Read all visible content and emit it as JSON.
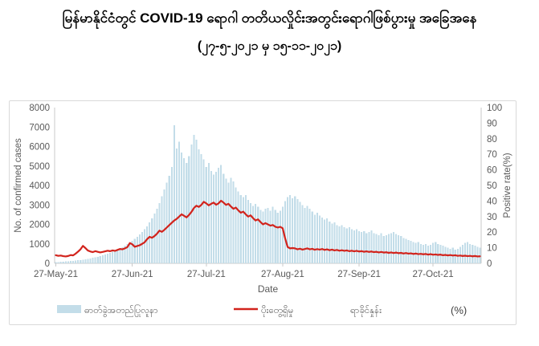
{
  "title": {
    "line1": "မြန်မာနိုင်ငံတွင်  COVID-19  ရောဂါ တတိယလှိုင်းအတွင်းရောဂါဖြစ်ပွားမှု  အခြေအနေ",
    "line2": "(၂၇-၅-၂၀၂၁ မှ ၁၅-၁၁-၂၀၂၁)"
  },
  "colors": {
    "bar_fill": "#c3dde9",
    "line_stroke": "#d2231c",
    "axis_text": "#595959",
    "axis_line": "#c9c9c9",
    "chart_border": "#d9d9d9"
  },
  "chart_data": {
    "type": "bar",
    "subtype": "combo-bar-line",
    "title": "Myanmar COVID-19 third wave: daily confirmed cases and positive rate",
    "xlabel": "Date",
    "x": {
      "start_date": "27-May-21",
      "end_date": "15-Nov-21",
      "tick_labels": [
        "27-May-21",
        "27-Jun-21",
        "27-Jul-21",
        "27-Aug-21",
        "27-Sep-21",
        "27-Oct-21"
      ],
      "tick_day_indices": [
        0,
        31,
        61,
        92,
        123,
        153
      ],
      "total_days": 173
    },
    "left_axis": {
      "title": "No. of confirmed cases",
      "min": 0,
      "max": 8000,
      "ticks": [
        0,
        1000,
        2000,
        3000,
        4000,
        5000,
        6000,
        7000,
        8000
      ],
      "grid": false
    },
    "right_axis": {
      "title": "Positive rate(%)",
      "min": 0,
      "max": 100,
      "ticks": [
        0,
        10,
        20,
        30,
        40,
        50,
        60,
        70,
        80,
        90,
        100
      ],
      "grid": false
    },
    "series": [
      {
        "name": "ဓာတ်ခွဲအတည်ပြုလူနာ",
        "type": "bar",
        "axis": "left",
        "color": "#c3dde9",
        "values": [
          61,
          72,
          84,
          90,
          97,
          110,
          118,
          125,
          140,
          155,
          170,
          185,
          205,
          230,
          255,
          280,
          310,
          340,
          375,
          410,
          450,
          495,
          545,
          600,
          640,
          700,
          760,
          830,
          900,
          980,
          1060,
          1150,
          1250,
          1370,
          1480,
          1600,
          1750,
          1900,
          2100,
          2300,
          2550,
          2800,
          3100,
          3450,
          3800,
          4150,
          4500,
          4950,
          7083,
          5900,
          6250,
          5700,
          5400,
          5150,
          5500,
          6100,
          6600,
          6350,
          5850,
          5600,
          5350,
          4950,
          5150,
          4750,
          4550,
          4700,
          4900,
          5050,
          4600,
          4350,
          4150,
          4400,
          4200,
          3900,
          3700,
          3500,
          3400,
          3500,
          3250,
          3100,
          2950,
          3050,
          2900,
          2750,
          2650,
          2800,
          2850,
          2700,
          2900,
          2750,
          2600,
          2700,
          2900,
          3200,
          3400,
          3500,
          3350,
          3450,
          3300,
          3150,
          3000,
          2850,
          2950,
          2800,
          2650,
          2500,
          2600,
          2450,
          2350,
          2250,
          2300,
          2150,
          2050,
          2100,
          1950,
          1900,
          1950,
          1850,
          1800,
          1850,
          1750,
          1700,
          1750,
          1650,
          1600,
          1650,
          1550,
          1600,
          1700,
          1550,
          1500,
          1450,
          1550,
          1400,
          1450,
          1500,
          1550,
          1600,
          1500,
          1450,
          1400,
          1300,
          1250,
          1200,
          1150,
          1100,
          1050,
          1100,
          1000,
          950,
          1000,
          900,
          950,
          1050,
          1100,
          1000,
          950,
          900,
          850,
          800,
          750,
          800,
          700,
          750,
          850,
          950,
          1050,
          1100,
          1000,
          950,
          900,
          850,
          800
        ]
      },
      {
        "name": "ပိုးတွေ့ရှိမှု ရာခိုင်နှုန်း (%)",
        "type": "line",
        "axis": "right",
        "color": "#d2231c",
        "values": [
          5.2,
          4.8,
          5.0,
          4.6,
          4.4,
          4.7,
          5.3,
          5.1,
          6.2,
          7.5,
          9.0,
          11.2,
          9.8,
          8.2,
          7.6,
          7.2,
          7.8,
          7.4,
          7.0,
          7.3,
          7.7,
          8.1,
          7.8,
          8.3,
          8.0,
          8.6,
          9.2,
          9.0,
          9.6,
          10.4,
          13.0,
          12.2,
          10.6,
          11.1,
          11.6,
          12.5,
          13.5,
          15.5,
          17.0,
          16.4,
          17.5,
          19.0,
          21.0,
          20.2,
          21.5,
          23.0,
          24.5,
          26.0,
          27.5,
          28.5,
          30.0,
          31.5,
          30.5,
          29.5,
          31.0,
          33.0,
          35.5,
          37.0,
          36.2,
          37.5,
          39.5,
          38.5,
          37.2,
          38.2,
          39.0,
          37.6,
          38.5,
          40.2,
          39.0,
          37.5,
          38.2,
          36.5,
          35.0,
          35.8,
          34.0,
          32.5,
          33.2,
          31.5,
          30.0,
          30.8,
          29.0,
          27.5,
          28.2,
          26.5,
          25.0,
          25.8,
          25.0,
          24.2,
          24.6,
          23.5,
          23.0,
          23.4,
          22.5,
          16.0,
          10.5,
          9.6,
          9.8,
          9.6,
          9.0,
          9.4,
          8.8,
          9.2,
          9.6,
          9.0,
          9.3,
          8.7,
          9.1,
          8.8,
          9.2,
          8.6,
          9.0,
          8.4,
          8.8,
          8.3,
          8.6,
          8.1,
          8.4,
          8.0,
          8.3,
          7.8,
          8.1,
          7.7,
          8.0,
          7.6,
          7.8,
          7.4,
          7.7,
          7.3,
          7.6,
          7.2,
          7.4,
          7.0,
          7.3,
          6.9,
          7.1,
          6.7,
          7.0,
          6.6,
          6.9,
          6.5,
          6.7,
          6.3,
          6.6,
          6.2,
          6.4,
          6.0,
          6.3,
          5.9,
          6.1,
          5.8,
          6.0,
          5.6,
          5.9,
          5.5,
          5.7,
          5.4,
          5.6,
          5.2,
          5.4,
          5.1,
          5.3,
          5.0,
          5.2,
          4.8,
          5.0,
          4.7,
          4.9,
          4.6,
          4.8,
          4.5,
          4.7,
          4.4,
          4.5
        ]
      }
    ],
    "legend_position": "bottom"
  },
  "legend": {
    "bar_label": "ဓာတ်ခွဲအတည်ပြုလူနာ",
    "line_label": "ပိုးတွေ့ရှိမှု",
    "rate_label": "ရာခိုင်နှုန်း",
    "unit_label": "(%)"
  }
}
